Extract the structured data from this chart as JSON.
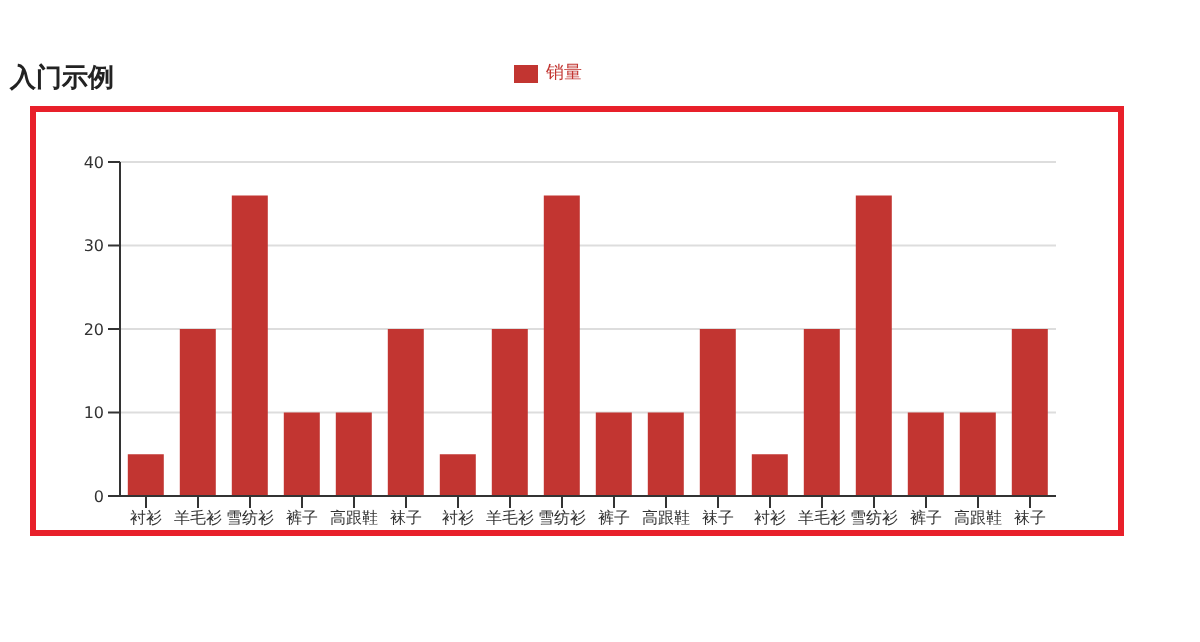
{
  "chart_data": {
    "type": "bar",
    "title": "入门示例",
    "categories": [
      "衬衫",
      "羊毛衫",
      "雪纺衫",
      "裤子",
      "高跟鞋",
      "袜子",
      "衬衫",
      "羊毛衫",
      "雪纺衫",
      "裤子",
      "高跟鞋",
      "袜子",
      "衬衫",
      "羊毛衫",
      "雪纺衫",
      "裤子",
      "高跟鞋",
      "袜子"
    ],
    "series": [
      {
        "name": "销量",
        "color": "#c23531",
        "values": [
          5,
          20,
          36,
          10,
          10,
          20,
          5,
          20,
          36,
          10,
          10,
          20,
          5,
          20,
          36,
          10,
          10,
          20
        ]
      }
    ],
    "ylim": [
      0,
      40
    ],
    "yticks": [
      0,
      10,
      20,
      30,
      40
    ],
    "grid": "y",
    "legend": "top"
  }
}
